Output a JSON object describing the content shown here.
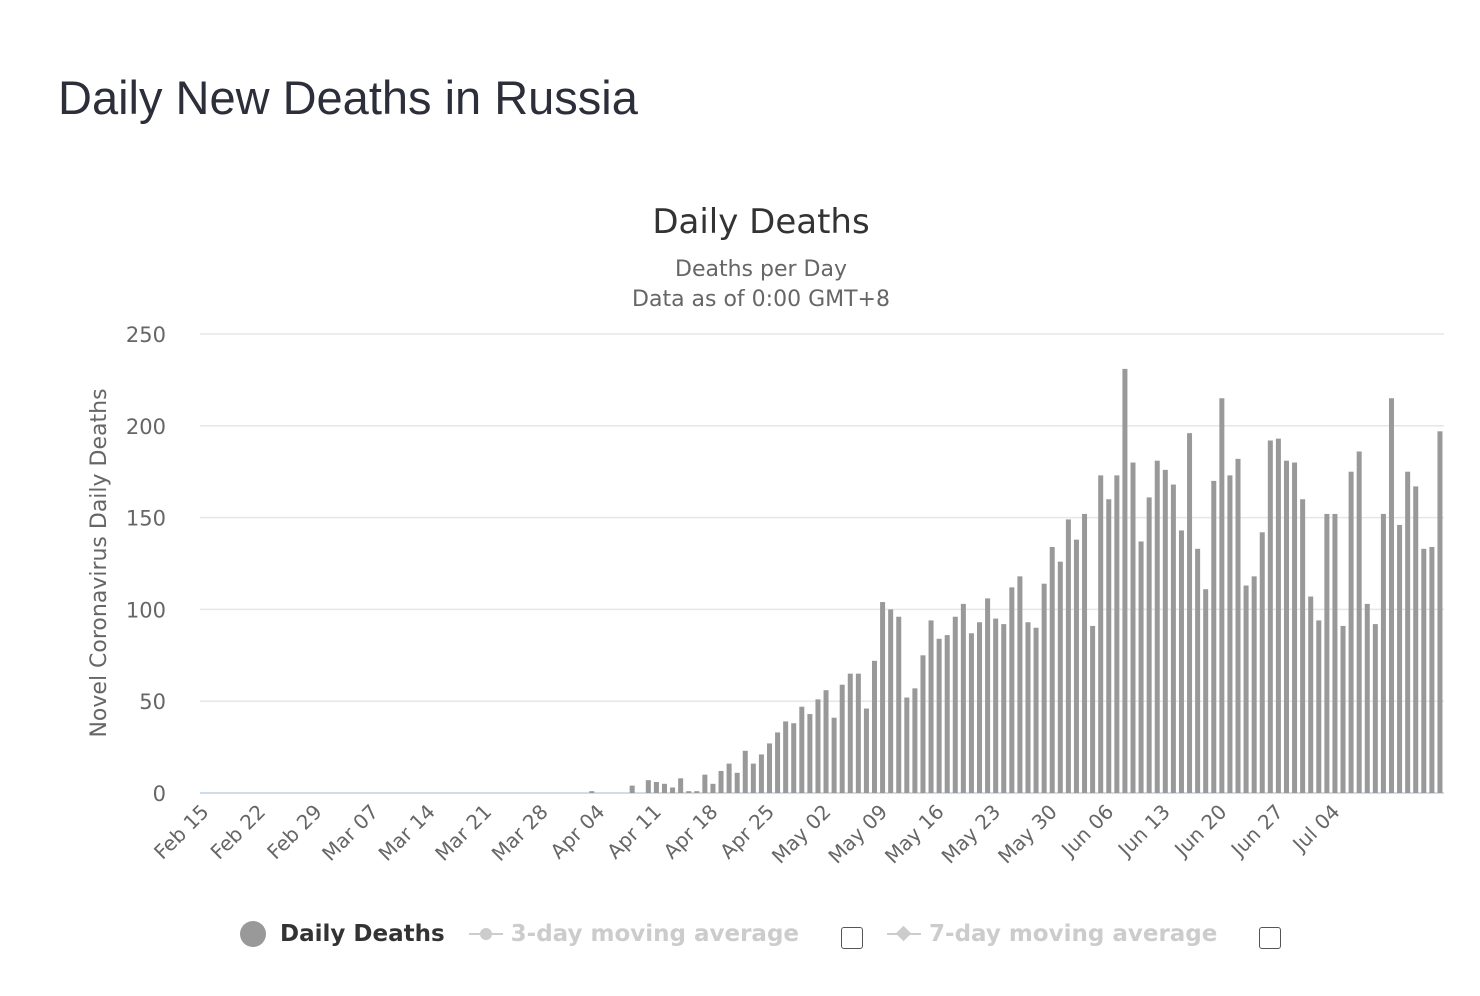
{
  "page": {
    "heading": "Daily New Deaths in Russia"
  },
  "chart_data": {
    "type": "bar",
    "title": "Daily Deaths",
    "subtitle": "Deaths per Day",
    "subtitle2": "Data as of 0:00 GMT+8",
    "ylabel": "Novel Coronavirus Daily Deaths",
    "xlabel": "",
    "ylim": [
      0,
      250
    ],
    "yticks": [
      0,
      50,
      100,
      150,
      200,
      250
    ],
    "grid": true,
    "x_tick_labels": [
      "Feb 15",
      "Feb 22",
      "Feb 29",
      "Mar 07",
      "Mar 14",
      "Mar 21",
      "Mar 28",
      "Apr 04",
      "Apr 11",
      "Apr 18",
      "Apr 25",
      "May 02",
      "May 09",
      "May 16",
      "May 23",
      "May 30",
      "Jun 06",
      "Jun 13",
      "Jun 20",
      "Jun 27",
      "Jul 04"
    ],
    "bar_color": "#999999",
    "series": [
      {
        "name": "Daily Deaths",
        "values": [
          0,
          0,
          0,
          0,
          0,
          0,
          0,
          0,
          0,
          0,
          0,
          0,
          0,
          0,
          0,
          0,
          0,
          0,
          0,
          0,
          0,
          0,
          0,
          0,
          0,
          0,
          0,
          0,
          0,
          0,
          0,
          0,
          0,
          0,
          0,
          0,
          0,
          0,
          0,
          0,
          0,
          0,
          0,
          0,
          0,
          0,
          0,
          0,
          1,
          0,
          0,
          0,
          0,
          4,
          0,
          7,
          6,
          5,
          3,
          8,
          1,
          1,
          10,
          5,
          12,
          16,
          11,
          23,
          16,
          21,
          27,
          33,
          39,
          38,
          47,
          43,
          51,
          56,
          41,
          59,
          65,
          65,
          46,
          72,
          104,
          100,
          96,
          52,
          57,
          75,
          94,
          84,
          86,
          96,
          103,
          87,
          93,
          106,
          95,
          92,
          112,
          118,
          93,
          90,
          114,
          134,
          126,
          149,
          138,
          152,
          91,
          173,
          160,
          173,
          231,
          180,
          137,
          161,
          181,
          176,
          168,
          143,
          196,
          133,
          111,
          170,
          215,
          173,
          182,
          113,
          118,
          142,
          192,
          193,
          181,
          180,
          160,
          107,
          94,
          152,
          152,
          91,
          175,
          186,
          103,
          92,
          152,
          215,
          146,
          175,
          167,
          133,
          134,
          197
        ]
      }
    ],
    "legend": [
      {
        "label": "Daily Deaths",
        "state": "visible"
      },
      {
        "label": "3-day moving average",
        "state": "hidden"
      },
      {
        "label": "7-day moving average",
        "state": "hidden"
      }
    ]
  }
}
